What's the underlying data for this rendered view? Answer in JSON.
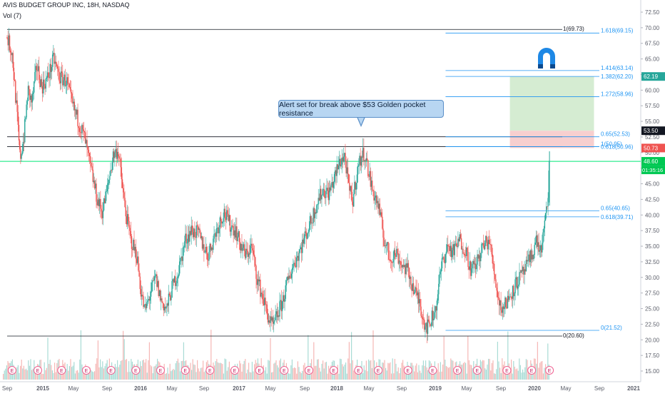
{
  "header": {
    "title": "AVIS BUDGET GROUP INC, 18H, NASDAQ",
    "volume_label": "Vol (7)"
  },
  "callout": {
    "text": "Alert set for break above $53 Golden pocket resistance"
  },
  "colors": {
    "up": "#26a69a",
    "down": "#ef5350",
    "fib": "#2196f3",
    "hline": "#131722",
    "current_price_line": "#00e676",
    "long_profit_zone": "#d5ecd2",
    "long_stop_zone": "#f7cfcf",
    "logo": "#1e88e5"
  },
  "chart_data": {
    "type": "line",
    "x_ticks": [
      "Sep",
      "2015",
      "May",
      "Sep",
      "2016",
      "May",
      "Sep",
      "2017",
      "May",
      "Sep",
      "2018",
      "May",
      "Sep",
      "2019",
      "May",
      "Sep",
      "2020",
      "May",
      "Sep",
      "2021"
    ],
    "y_ticks": [
      "72.50",
      "70.00",
      "67.50",
      "65.00",
      "62.50",
      "60.00",
      "57.50",
      "55.00",
      "52.50",
      "50.00",
      "47.50",
      "45.00",
      "42.50",
      "40.00",
      "37.50",
      "35.00",
      "32.50",
      "30.00",
      "27.50",
      "25.00",
      "22.50",
      "20.00",
      "17.50",
      "15.00"
    ],
    "ylim": [
      13.8,
      74.5
    ],
    "series": [
      {
        "values": [
          [
            2014.67,
            68.5
          ],
          [
            2014.72,
            66.0
          ],
          [
            2014.77,
            56.0
          ],
          [
            2014.8,
            49.0
          ],
          [
            2014.84,
            52.5
          ],
          [
            2014.88,
            60.0
          ],
          [
            2014.92,
            58.0
          ],
          [
            2014.97,
            64.0
          ],
          [
            2015.02,
            60.5
          ],
          [
            2015.08,
            62.0
          ],
          [
            2015.14,
            65.0
          ],
          [
            2015.2,
            62.0
          ],
          [
            2015.27,
            61.5
          ],
          [
            2015.32,
            58.0
          ],
          [
            2015.38,
            55.5
          ],
          [
            2015.45,
            52.5
          ],
          [
            2015.52,
            47.0
          ],
          [
            2015.58,
            42.5
          ],
          [
            2015.63,
            40.5
          ],
          [
            2015.68,
            44.0
          ],
          [
            2015.74,
            49.5
          ],
          [
            2015.79,
            50.5
          ],
          [
            2015.86,
            41.0
          ],
          [
            2015.92,
            36.0
          ],
          [
            2015.98,
            33.5
          ],
          [
            2016.02,
            28.0
          ],
          [
            2016.06,
            24.5
          ],
          [
            2016.12,
            27.5
          ],
          [
            2016.17,
            30.0
          ],
          [
            2016.22,
            26.5
          ],
          [
            2016.28,
            24.8
          ],
          [
            2016.33,
            28.0
          ],
          [
            2016.4,
            31.0
          ],
          [
            2016.47,
            36.0
          ],
          [
            2016.53,
            37.5
          ],
          [
            2016.6,
            37.0
          ],
          [
            2016.64,
            35.5
          ],
          [
            2016.7,
            33.5
          ],
          [
            2016.76,
            36.5
          ],
          [
            2016.82,
            39.0
          ],
          [
            2016.86,
            40.5
          ],
          [
            2016.92,
            38.5
          ],
          [
            2016.98,
            37.5
          ],
          [
            2017.02,
            35.5
          ],
          [
            2017.08,
            33.5
          ],
          [
            2017.14,
            35.0
          ],
          [
            2017.2,
            29.5
          ],
          [
            2017.26,
            26.5
          ],
          [
            2017.32,
            23.0
          ],
          [
            2017.36,
            22.0
          ],
          [
            2017.4,
            24.0
          ],
          [
            2017.45,
            26.0
          ],
          [
            2017.5,
            29.0
          ],
          [
            2017.56,
            32.0
          ],
          [
            2017.62,
            34.0
          ],
          [
            2017.68,
            36.5
          ],
          [
            2017.74,
            39.0
          ],
          [
            2017.8,
            42.0
          ],
          [
            2017.86,
            44.0
          ],
          [
            2017.92,
            43.5
          ],
          [
            2017.98,
            46.0
          ],
          [
            2018.03,
            48.5
          ],
          [
            2018.08,
            49.5
          ],
          [
            2018.12,
            44.5
          ],
          [
            2018.16,
            42.0
          ],
          [
            2018.2,
            46.5
          ],
          [
            2018.24,
            49.0
          ],
          [
            2018.28,
            50.0
          ],
          [
            2018.32,
            47.0
          ],
          [
            2018.36,
            44.0
          ],
          [
            2018.42,
            41.5
          ],
          [
            2018.48,
            36.0
          ],
          [
            2018.54,
            33.0
          ],
          [
            2018.6,
            34.0
          ],
          [
            2018.66,
            32.0
          ],
          [
            2018.72,
            31.0
          ],
          [
            2018.78,
            28.0
          ],
          [
            2018.84,
            26.0
          ],
          [
            2018.88,
            23.0
          ],
          [
            2018.92,
            22.0
          ],
          [
            2018.96,
            23.5
          ],
          [
            2019.0,
            25.0
          ],
          [
            2019.06,
            32.0
          ],
          [
            2019.12,
            35.0
          ],
          [
            2019.18,
            34.0
          ],
          [
            2019.24,
            36.0
          ],
          [
            2019.3,
            34.5
          ],
          [
            2019.36,
            31.0
          ],
          [
            2019.42,
            32.5
          ],
          [
            2019.48,
            35.0
          ],
          [
            2019.54,
            36.0
          ],
          [
            2019.6,
            30.0
          ],
          [
            2019.64,
            26.0
          ],
          [
            2019.68,
            25.0
          ],
          [
            2019.73,
            26.5
          ],
          [
            2019.78,
            28.0
          ],
          [
            2019.83,
            29.5
          ],
          [
            2019.88,
            30.5
          ],
          [
            2019.93,
            32.0
          ],
          [
            2019.98,
            34.0
          ],
          [
            2020.02,
            36.0
          ],
          [
            2020.06,
            34.0
          ],
          [
            2020.1,
            38.0
          ],
          [
            2020.13,
            42.0
          ],
          [
            2020.15,
            48.6
          ]
        ]
      }
    ],
    "horizontal_lines": [
      {
        "y": 69.73,
        "x_start": 2014.67,
        "label": "1(69.73)"
      },
      {
        "y": 52.53,
        "x_start": 2014.67
      },
      {
        "y": 50.96,
        "x_start": 2014.67
      },
      {
        "y": 20.6,
        "x_start": 2014.67,
        "label": "0(20.60)"
      }
    ],
    "fib_levels": [
      {
        "y": 69.15,
        "label": "1.618(69.15)"
      },
      {
        "y": 63.14,
        "label": "1.414(63.14)"
      },
      {
        "y": 62.2,
        "label": "1.382(62.20)"
      },
      {
        "y": 58.96,
        "label": "1.272(58.96)"
      },
      {
        "y": 52.53,
        "label": "0.65(52.53)"
      },
      {
        "y": 50.96,
        "label": "0.618(50.96)"
      },
      {
        "y": 50.95,
        "label": "1(50.95)"
      },
      {
        "y": 40.65,
        "label": "0.65(40.65)"
      },
      {
        "y": 39.71,
        "label": "0.618(39.71)"
      },
      {
        "y": 21.52,
        "label": "0(21.52)"
      }
    ],
    "fib_x_range": [
      2019.1,
      2020.6
    ],
    "current_price": 48.6,
    "long_position": {
      "entry": 53.5,
      "target": 62.19,
      "stop": 50.73,
      "x_range": [
        2019.75,
        2020.6
      ]
    },
    "price_tags": [
      {
        "value": "62.19",
        "y": 62.19,
        "color": "#26a69a"
      },
      {
        "value": "53.50",
        "y": 53.5,
        "color": "#131722"
      },
      {
        "value": "50.73",
        "y": 50.73,
        "color": "#ef5350"
      },
      {
        "value": "48.60",
        "y": 48.6,
        "color": "#00c853"
      }
    ],
    "countdown": "01:35:16",
    "earnings_markers": [
      2014.72,
      2014.98,
      2015.22,
      2015.47,
      2015.72,
      2015.97,
      2016.22,
      2016.47,
      2016.72,
      2016.97,
      2017.22,
      2017.47,
      2017.72,
      2017.97,
      2018.22,
      2018.42,
      2018.72,
      2018.97,
      2019.22,
      2019.42,
      2019.72,
      2019.97,
      2020.15
    ],
    "earnings_glyph": "E"
  }
}
